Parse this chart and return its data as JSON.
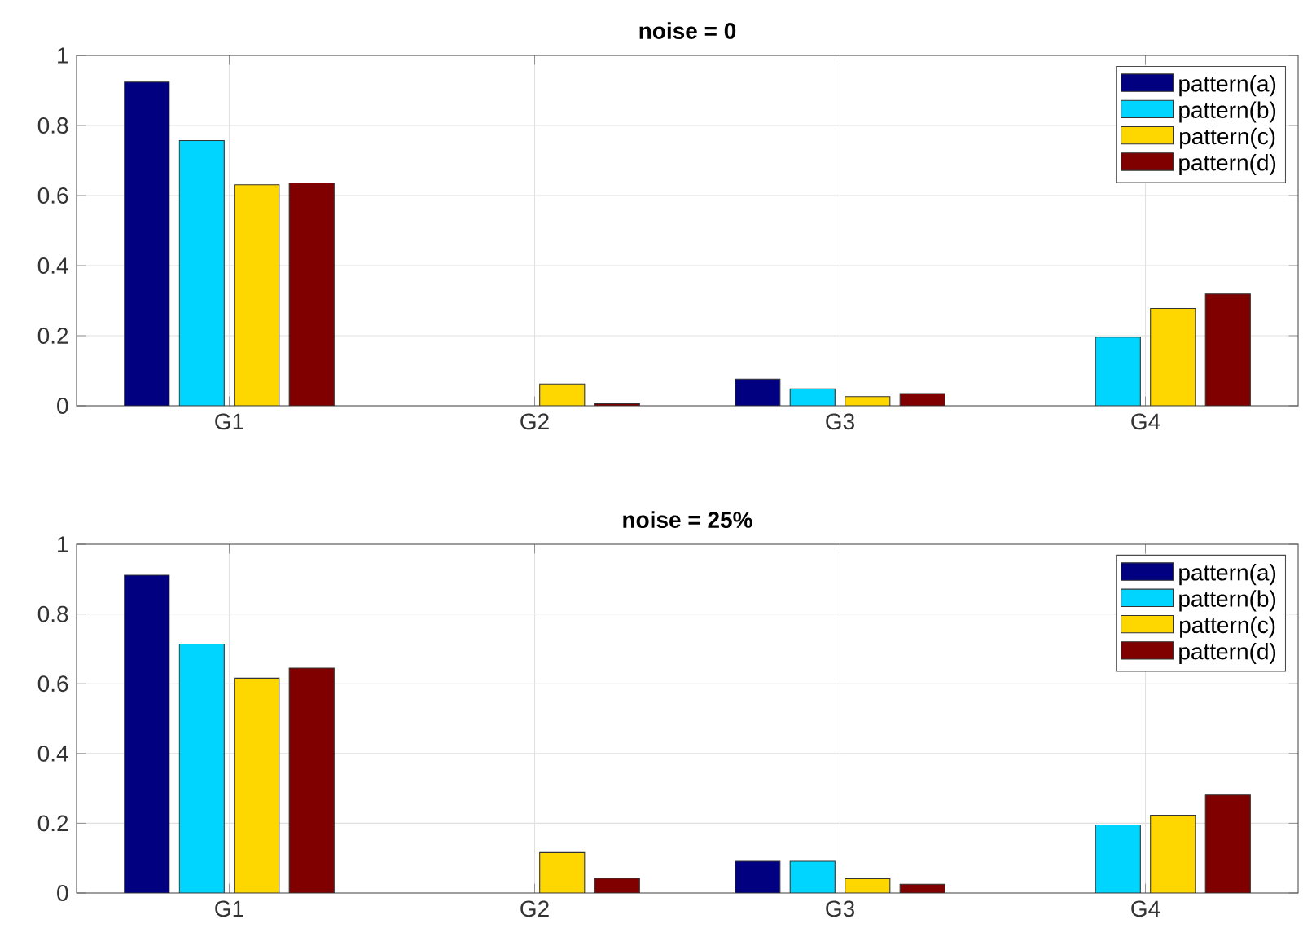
{
  "chart_data": [
    {
      "type": "bar",
      "title": "noise = 0",
      "categories": [
        "G1",
        "G2",
        "G3",
        "G4"
      ],
      "series": [
        {
          "name": "pattern(a)",
          "color": "#000080",
          "values": [
            0.924,
            null,
            0.076,
            null
          ]
        },
        {
          "name": "pattern(b)",
          "color": "#00d5ff",
          "values": [
            0.757,
            null,
            0.048,
            0.196
          ]
        },
        {
          "name": "pattern(c)",
          "color": "#ffd700",
          "values": [
            0.631,
            0.062,
            0.026,
            0.278
          ]
        },
        {
          "name": "pattern(d)",
          "color": "#800000",
          "values": [
            0.636,
            0.006,
            0.035,
            0.319
          ]
        }
      ],
      "ylim": [
        0,
        1
      ],
      "yticks": [
        0,
        0.2,
        0.4,
        0.6,
        0.8,
        1
      ],
      "grid": true,
      "legend": "top right"
    },
    {
      "type": "bar",
      "title": "noise = 25%",
      "categories": [
        "G1",
        "G2",
        "G3",
        "G4"
      ],
      "series": [
        {
          "name": "pattern(a)",
          "color": "#000080",
          "values": [
            0.911,
            null,
            0.091,
            null
          ]
        },
        {
          "name": "pattern(b)",
          "color": "#00d5ff",
          "values": [
            0.714,
            null,
            0.091,
            0.195
          ]
        },
        {
          "name": "pattern(c)",
          "color": "#ffd700",
          "values": [
            0.616,
            0.116,
            0.041,
            0.223
          ]
        },
        {
          "name": "pattern(d)",
          "color": "#800000",
          "values": [
            0.645,
            0.042,
            0.025,
            0.281
          ]
        }
      ],
      "ylim": [
        0,
        1
      ],
      "yticks": [
        0,
        0.2,
        0.4,
        0.6,
        0.8,
        1
      ],
      "grid": true,
      "legend": "top right"
    }
  ]
}
